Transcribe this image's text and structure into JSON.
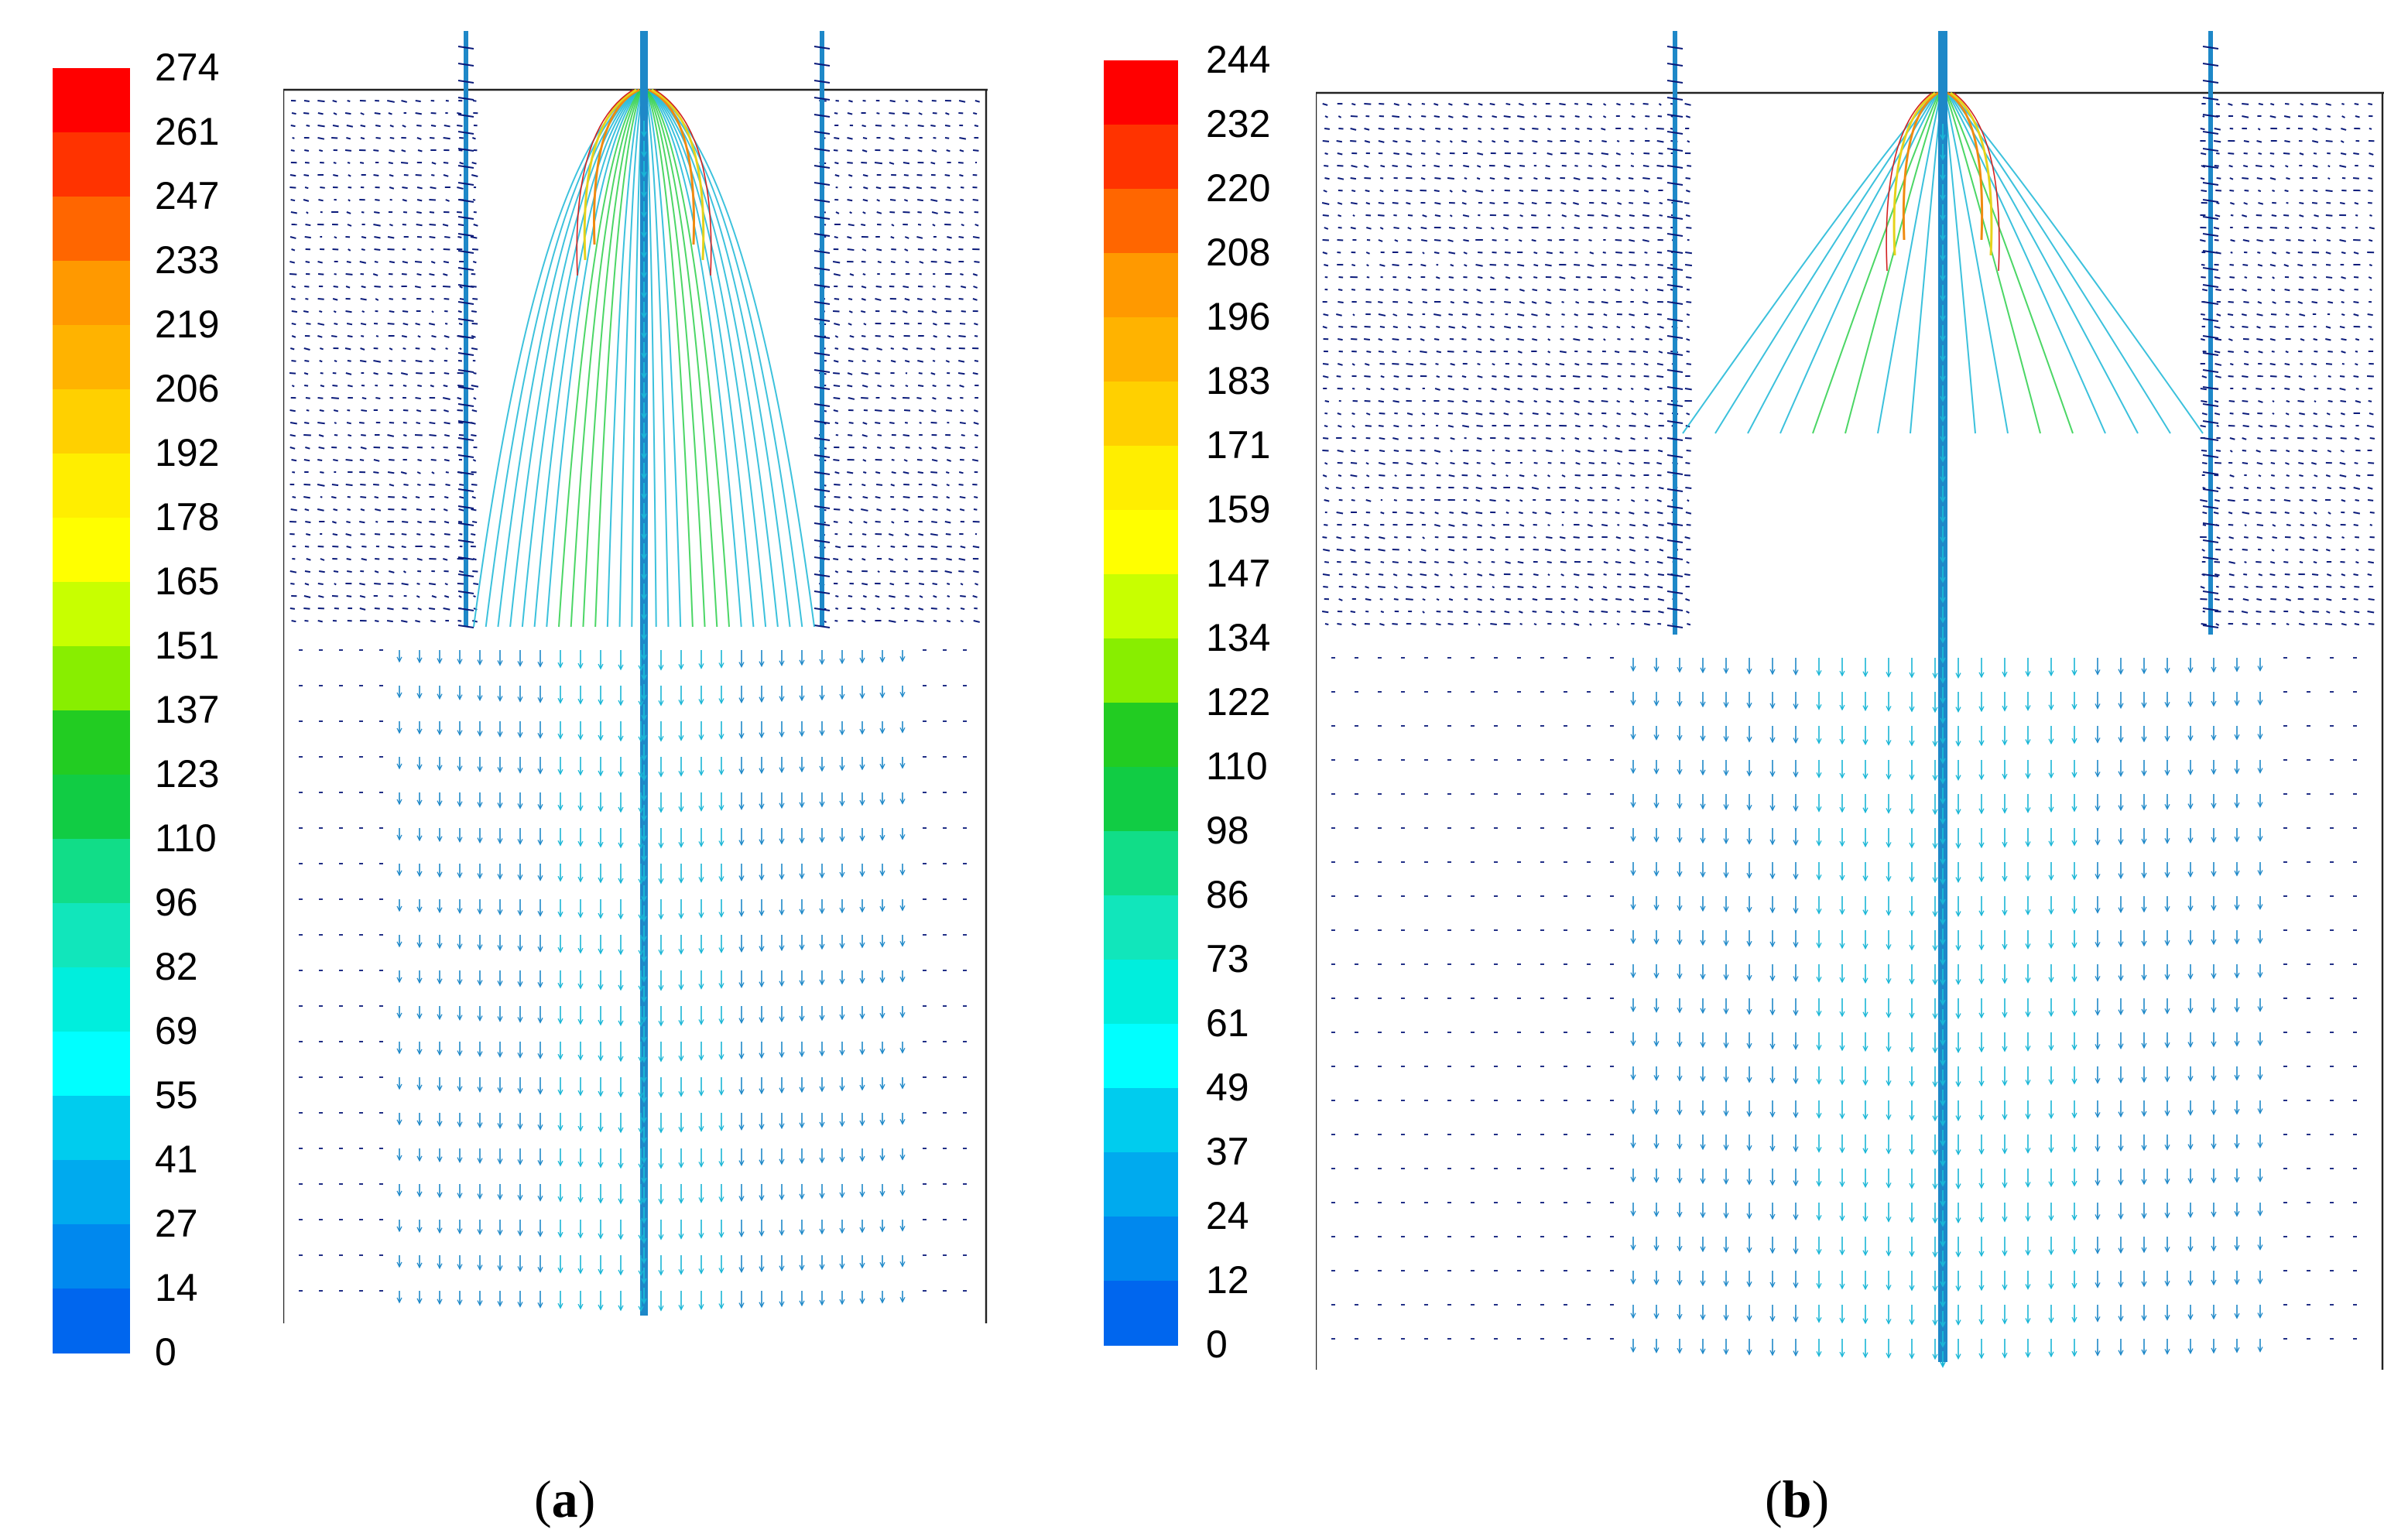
{
  "panels": [
    {
      "id": "a",
      "caption_letter": "a",
      "colorbar_ticks": [
        "274",
        "261",
        "247",
        "233",
        "219",
        "206",
        "192",
        "178",
        "165",
        "151",
        "137",
        "123",
        "110",
        "96",
        "82",
        "69",
        "55",
        "41",
        "27",
        "14",
        "0"
      ],
      "colorbar_colors": [
        "#ff0000",
        "#ff3300",
        "#ff6600",
        "#ff9900",
        "#ffb300",
        "#ffd000",
        "#ffee00",
        "#ffff00",
        "#c8ff00",
        "#88ee00",
        "#22cc22",
        "#11cc44",
        "#11dd88",
        "#11e6bb",
        "#00eedd",
        "#00ffff",
        "#00ccee",
        "#00aaee",
        "#0088ee",
        "#0066ee",
        "#0000dd"
      ],
      "flow": "single jet from top center, recirculation between two vertical blades"
    },
    {
      "id": "b",
      "caption_letter": "b",
      "colorbar_ticks": [
        "244",
        "232",
        "220",
        "208",
        "196",
        "183",
        "171",
        "159",
        "147",
        "134",
        "122",
        "110",
        "98",
        "86",
        "73",
        "61",
        "49",
        "37",
        "24",
        "12",
        "0"
      ],
      "colorbar_colors": [
        "#ff0000",
        "#ff3300",
        "#ff6600",
        "#ff9900",
        "#ffb300",
        "#ffd000",
        "#ffee00",
        "#ffff00",
        "#c8ff00",
        "#88ee00",
        "#22cc22",
        "#11cc44",
        "#11dd88",
        "#11e6bb",
        "#00eedd",
        "#00ffff",
        "#00ccee",
        "#00aaee",
        "#0088ee",
        "#0066ee",
        "#0000dd"
      ],
      "flow": "narrow central jet, weaker lateral recirculation"
    }
  ],
  "colors": {
    "dark_vector": "#0a1a7a",
    "cyan_vector": "#19b6d6",
    "mid_blue": "#1e88c8",
    "green": "#2bcf4a",
    "yellow": "#e6d21a",
    "orange": "#f08a10",
    "red": "#d22020"
  }
}
